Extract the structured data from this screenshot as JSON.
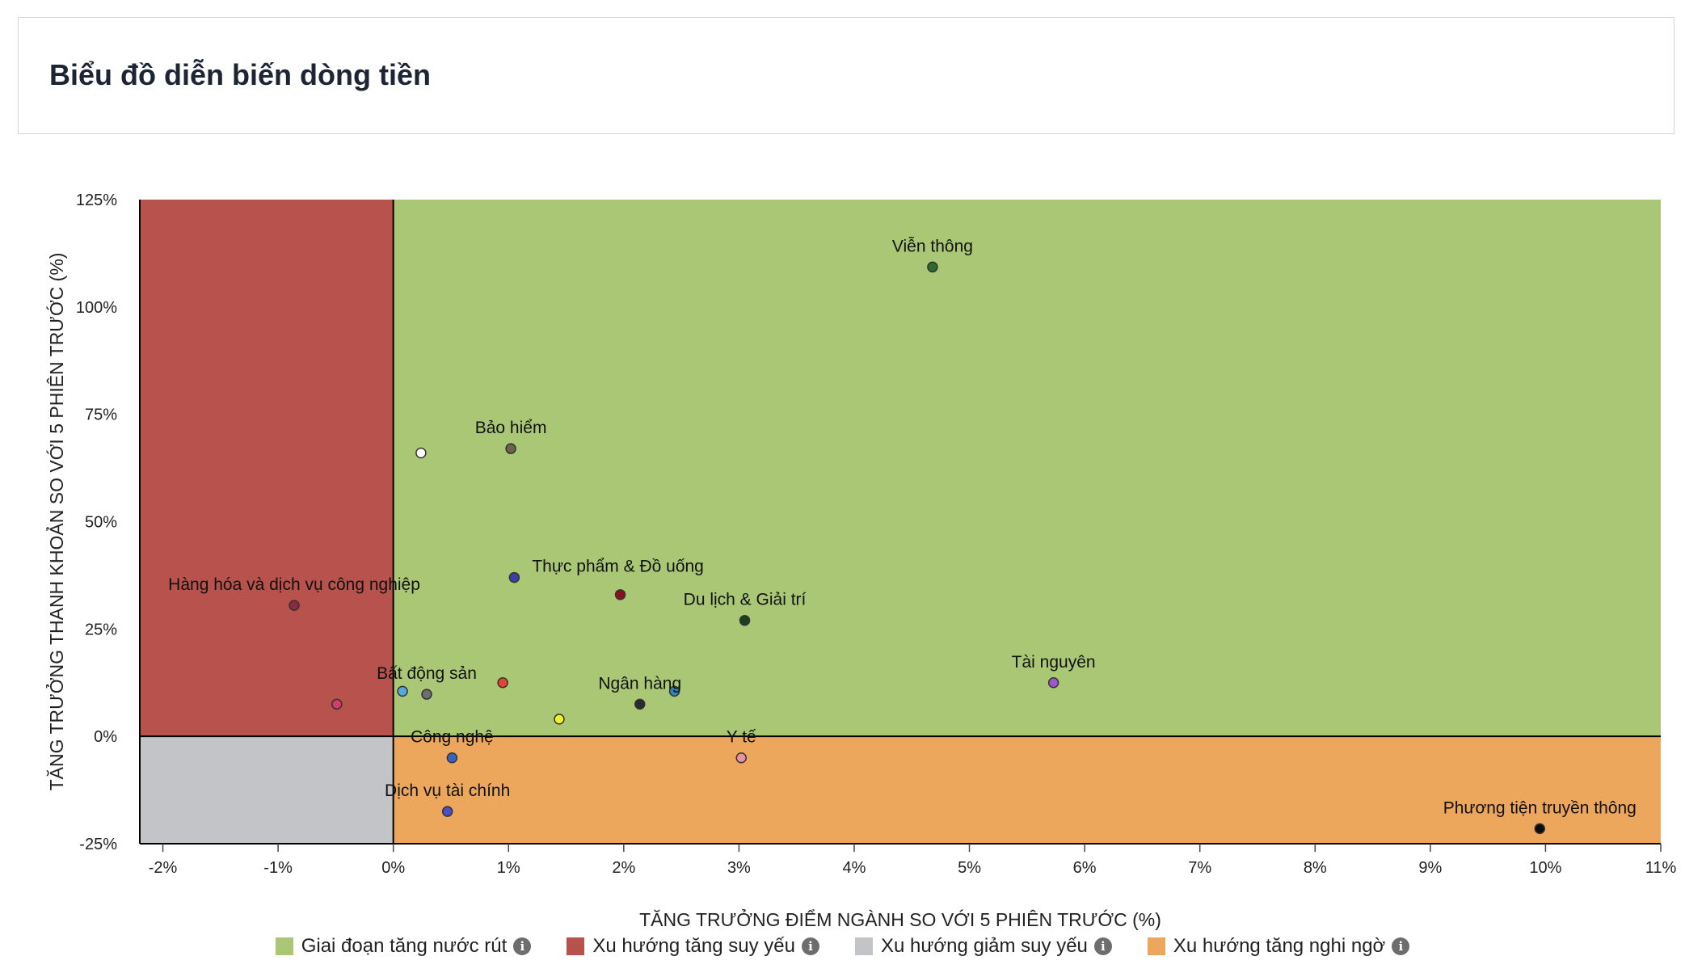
{
  "header": {
    "title": "Biểu đồ diễn biến dòng tiền"
  },
  "chart_data": {
    "type": "scatter",
    "title": "",
    "xlabel": "TĂNG TRƯỞNG ĐIỂM NGÀNH SO VỚI 5 PHIÊN TRƯỚC (%)",
    "ylabel": "TĂNG TRƯỞNG THANH KHOẢN SO VỚI 5 PHIÊN TRƯỚC (%)",
    "xlim": [
      -2.2,
      11.0
    ],
    "ylim": [
      -25,
      125
    ],
    "x_ticks": [
      -2,
      -1,
      0,
      1,
      2,
      3,
      4,
      5,
      6,
      7,
      8,
      9,
      10,
      11
    ],
    "x_tick_labels": [
      "-2%",
      "-1%",
      "0%",
      "1%",
      "2%",
      "3%",
      "4%",
      "5%",
      "6%",
      "7%",
      "8%",
      "9%",
      "10%",
      "11%"
    ],
    "y_ticks": [
      125,
      100,
      75,
      50,
      25,
      0,
      -25
    ],
    "y_tick_labels": [
      "125%",
      "100%",
      "75%",
      "50%",
      "25%",
      "0%",
      "-25%"
    ],
    "grid": false,
    "legend_position": "bottom",
    "quadrants": [
      {
        "name": "Giai đoạn tăng nước rút",
        "color": "#a9c774",
        "x": [
          0,
          11
        ],
        "y": [
          0,
          125
        ]
      },
      {
        "name": "Xu hướng tăng suy yếu",
        "color": "#b8524c",
        "x": [
          -2.2,
          0
        ],
        "y": [
          0,
          125
        ]
      },
      {
        "name": "Xu hướng giảm suy yếu",
        "color": "#c3c4c8",
        "x": [
          -2.2,
          0
        ],
        "y": [
          -25,
          0
        ]
      },
      {
        "name": "Xu hướng tăng nghi ngờ",
        "color": "#eda75c",
        "x": [
          0,
          11
        ],
        "y": [
          -25,
          0
        ]
      }
    ],
    "points": [
      {
        "label": "Viễn thông",
        "x": 4.68,
        "y": 109.3,
        "color": "#2e6b30",
        "label_pos": "above"
      },
      {
        "label": "",
        "x": 0.24,
        "y": 66.0,
        "color": "#ffffff"
      },
      {
        "label": "Bảo hiểm",
        "x": 1.02,
        "y": 67.0,
        "color": "#6b6448",
        "label_pos": "above"
      },
      {
        "label": "Thực phẩm & Đồ uống",
        "x": 1.05,
        "y": 37.0,
        "color": "#3b3fa8",
        "label_pos": "above-right"
      },
      {
        "label": "",
        "x": 1.97,
        "y": 33.0,
        "color": "#8a1020"
      },
      {
        "label": "Du lịch & Giải trí",
        "x": 3.05,
        "y": 27.0,
        "color": "#1d3f1d",
        "label_pos": "above"
      },
      {
        "label": "Hàng hóa và dịch vụ công nghiệp",
        "x": -0.86,
        "y": 30.5,
        "color": "#8a2a3f",
        "label_pos": "above"
      },
      {
        "label": "",
        "x": -0.49,
        "y": 7.5,
        "color": "#d63b6a"
      },
      {
        "label": "",
        "x": 0.08,
        "y": 10.5,
        "color": "#58a8de"
      },
      {
        "label": "Bất động sản",
        "x": 0.29,
        "y": 9.8,
        "color": "#6e6e6e",
        "label_pos": "above"
      },
      {
        "label": "",
        "x": 0.95,
        "y": 12.5,
        "color": "#e3452f"
      },
      {
        "label": "",
        "x": 1.44,
        "y": 4.0,
        "color": "#eef22e"
      },
      {
        "label": "Ngân hàng",
        "x": 2.14,
        "y": 7.5,
        "color": "#2a2a2a",
        "label_pos": "above"
      },
      {
        "label": "",
        "x": 2.44,
        "y": 10.5,
        "color": "#2f83b5"
      },
      {
        "label": "Tài nguyên",
        "x": 5.73,
        "y": 12.5,
        "color": "#a055d0",
        "label_pos": "above"
      },
      {
        "label": "Công nghệ",
        "x": 0.51,
        "y": -5.0,
        "color": "#3a62c2",
        "label_pos": "above"
      },
      {
        "label": "Y tế",
        "x": 3.02,
        "y": -5.0,
        "color": "#ee8fa0",
        "label_pos": "above"
      },
      {
        "label": "Dịch vụ tài chính",
        "x": 0.47,
        "y": -17.5,
        "color": "#4a4fc8",
        "label_pos": "above"
      },
      {
        "label": "Phương tiện truyền thông",
        "x": 9.95,
        "y": -21.5,
        "color": "#0d0d0d",
        "label_pos": "above"
      }
    ]
  },
  "legend": {
    "items": [
      {
        "label": "Giai đoạn tăng nước rút",
        "color": "#a9c774",
        "icon": "info-icon"
      },
      {
        "label": "Xu hướng tăng suy yếu",
        "color": "#b8524c",
        "icon": "info-icon"
      },
      {
        "label": "Xu hướng giảm suy yếu",
        "color": "#c3c4c8",
        "icon": "info-icon"
      },
      {
        "label": "Xu hướng tăng nghi ngờ",
        "color": "#eda75c",
        "icon": "info-icon"
      }
    ]
  }
}
